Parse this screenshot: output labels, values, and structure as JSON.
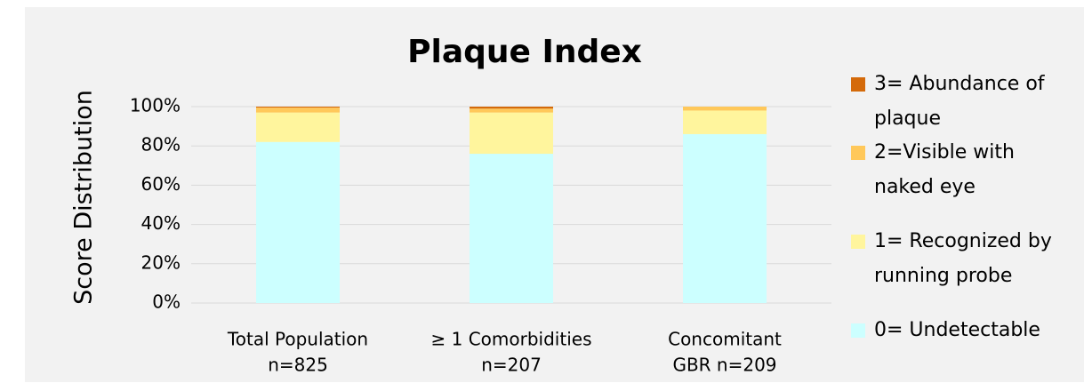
{
  "chart_data": {
    "type": "stacked_bar",
    "title": "Plaque Index",
    "y_label": "Score Distribution",
    "categories": [
      [
        "Total Population",
        "n=825"
      ],
      [
        "≥ 1 Comorbidities",
        "n=207"
      ],
      [
        "Concomitant",
        "GBR    n=209"
      ]
    ],
    "series": [
      {
        "name": [
          "0= Undetectable"
        ],
        "color": "#ccffff",
        "values": [
          82,
          76,
          86
        ]
      },
      {
        "name": [
          "1= Recognized by",
          "running probe"
        ],
        "color": "#fff59d",
        "values": [
          15,
          21,
          12
        ]
      },
      {
        "name": [
          "2=Visible with",
          "naked eye"
        ],
        "color": "#ffc85a",
        "values": [
          2.5,
          2,
          2
        ]
      },
      {
        "name": [
          "3= Abundance of",
          "plaque"
        ],
        "color": "#d46a0a",
        "values": [
          0.5,
          1,
          0
        ]
      }
    ],
    "ylim": [
      0,
      100
    ],
    "yticks": [
      {
        "value": 0,
        "label": "0%"
      },
      {
        "value": 20,
        "label": "20%"
      },
      {
        "value": 40,
        "label": "40%"
      },
      {
        "value": 60,
        "label": "60%"
      },
      {
        "value": 80,
        "label": "80%"
      },
      {
        "value": 100,
        "label": "100%"
      }
    ],
    "grid": true
  }
}
